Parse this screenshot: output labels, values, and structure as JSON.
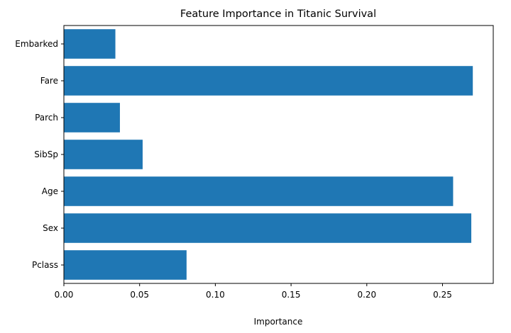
{
  "chart_data": {
    "type": "bar",
    "orientation": "horizontal",
    "title": "Feature Importance in Titanic Survival",
    "xlabel": "Importance",
    "ylabel": "",
    "categories": [
      "Pclass",
      "Sex",
      "Age",
      "SibSp",
      "Parch",
      "Fare",
      "Embarked"
    ],
    "values": [
      0.081,
      0.269,
      0.257,
      0.052,
      0.037,
      0.27,
      0.034
    ],
    "xlim": [
      0,
      0.2835
    ],
    "xticks": [
      0.0,
      0.05,
      0.1,
      0.15,
      0.2,
      0.25
    ],
    "xtick_labels": [
      "0.00",
      "0.05",
      "0.10",
      "0.15",
      "0.20",
      "0.25"
    ],
    "bar_color": "#1f77b4",
    "grid": false,
    "legend": "none"
  }
}
